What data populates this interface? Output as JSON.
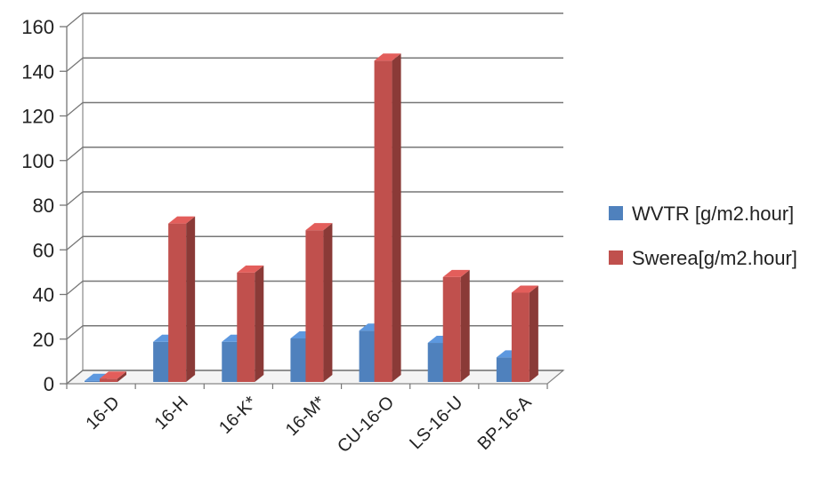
{
  "chart_data": {
    "type": "bar",
    "categories": [
      "16-D",
      "16-H",
      "16-K*",
      "16-M*",
      "CU-16-O",
      "LS-16-U",
      "BP-16-A"
    ],
    "series": [
      {
        "name": "WVTR [g/m2.hour]",
        "values": [
          0.5,
          18,
          18,
          19.5,
          23,
          17.5,
          11
        ],
        "color": "#4f81bd"
      },
      {
        "name": "Swerea[g/m2.hour]",
        "values": [
          1.5,
          71,
          49,
          68,
          144,
          47,
          40
        ],
        "color": "#c0504d"
      }
    ],
    "ylim": [
      0,
      160
    ],
    "yticks": [
      0,
      20,
      40,
      60,
      80,
      100,
      120,
      140,
      160
    ],
    "grid": true,
    "legend": "right",
    "style": "3d-clustered-column"
  }
}
